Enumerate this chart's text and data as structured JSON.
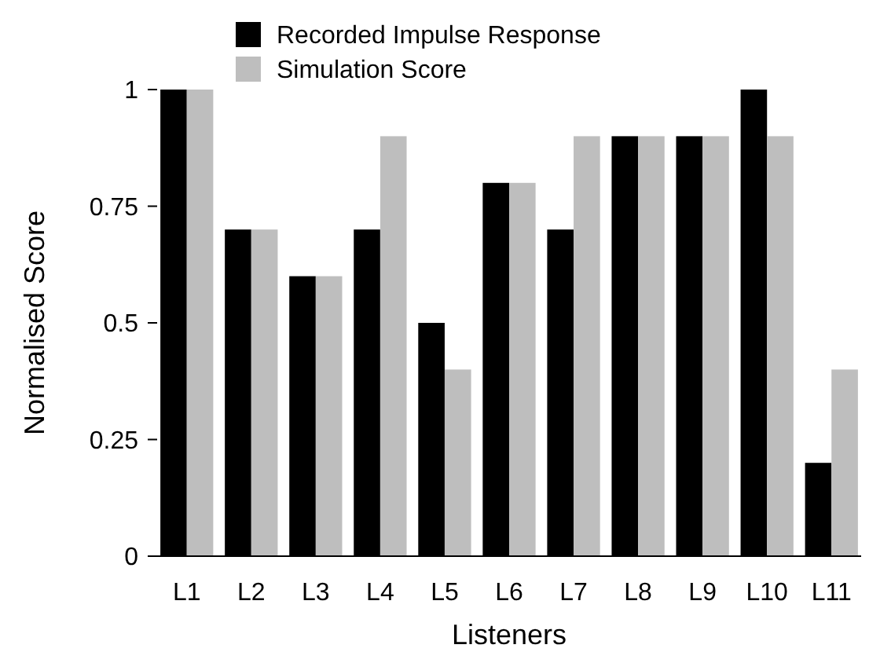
{
  "chart_data": {
    "type": "bar",
    "xlabel": "Listeners",
    "ylabel": "Normalised Score",
    "categories": [
      "L1",
      "L2",
      "L3",
      "L4",
      "L5",
      "L6",
      "L7",
      "L8",
      "L9",
      "L10",
      "L11"
    ],
    "series": [
      {
        "name": "Recorded Impulse Response",
        "color": "#000000",
        "values": [
          1,
          0.7,
          0.6,
          0.7,
          0.5,
          0.8,
          0.7,
          0.9,
          0.9,
          1,
          0.2
        ]
      },
      {
        "name": "Simulation Score",
        "color": "#bebebe",
        "values": [
          1,
          0.7,
          0.6,
          0.9,
          0.4,
          0.8,
          0.9,
          0.9,
          0.9,
          0.9,
          0.4
        ]
      }
    ],
    "ylim": [
      0,
      1
    ],
    "yticks": [
      0,
      0.25,
      0.5,
      0.75,
      1
    ],
    "legend": "top",
    "grid": false
  }
}
